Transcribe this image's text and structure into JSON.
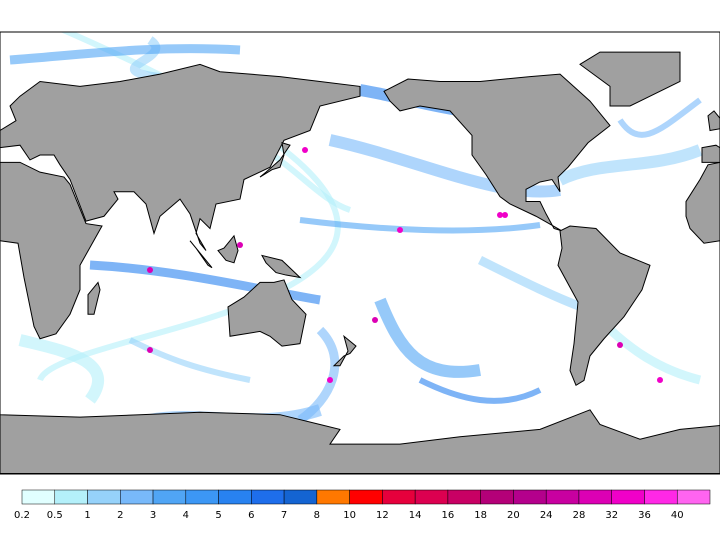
{
  "legend": {
    "levels": [
      0.2,
      0.5,
      1,
      2,
      3,
      4,
      5,
      6,
      7,
      8,
      10,
      12,
      14,
      16,
      18,
      20,
      24,
      28,
      32,
      36,
      40
    ],
    "colors": [
      "#e1ffff",
      "#b4f0fa",
      "#96d2fa",
      "#78b9fa",
      "#50a5f5",
      "#3c97f5",
      "#2882f0",
      "#1e6eeb",
      "#1464d2",
      "#ff7800",
      "#ff0000",
      "#e6003c",
      "#dc0050",
      "#c80064",
      "#b40078",
      "#b4008c",
      "#c800a0",
      "#dc00b4",
      "#f000c8",
      "#ff28e6",
      "#ff64f0"
    ]
  }
}
